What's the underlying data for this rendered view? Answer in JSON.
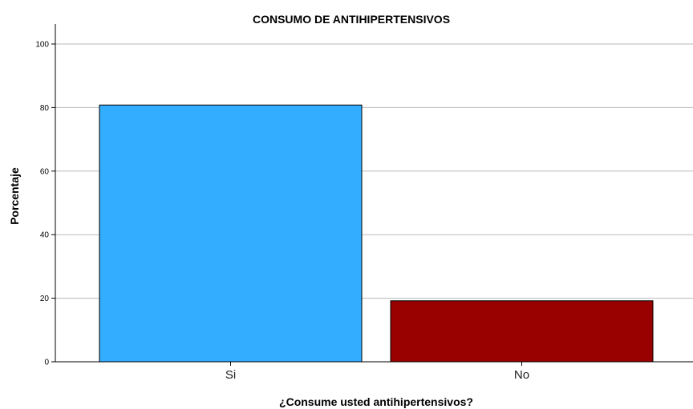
{
  "chart_data": {
    "type": "bar",
    "title": "CONSUMO DE ANTIHIPERTENSIVOS",
    "xlabel": "¿Consume usted antihipertensivos?",
    "ylabel": "Porcentaje",
    "categories": [
      "Si",
      "No"
    ],
    "values": [
      80.8,
      19.2
    ],
    "colors": [
      "#33adff",
      "#990000"
    ],
    "ylim": [
      0,
      105
    ],
    "yticks": [
      0,
      20,
      40,
      60,
      80,
      100
    ],
    "grid": true,
    "legend": "none"
  }
}
